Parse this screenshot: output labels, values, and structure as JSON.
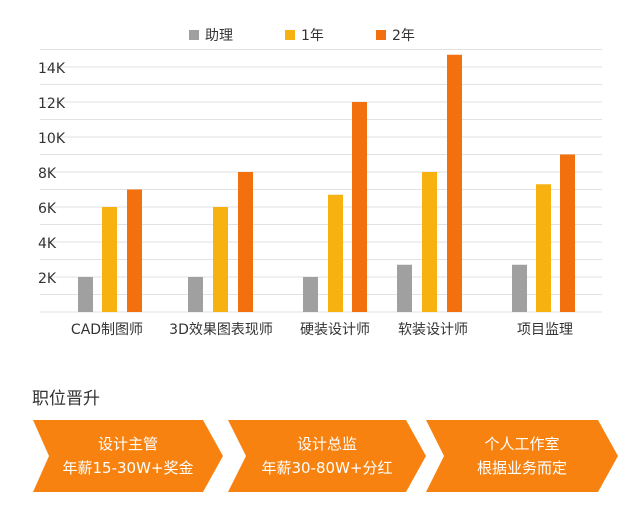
{
  "chart_data": {
    "type": "bar",
    "categories": [
      "CAD制图师",
      "3D效果图表现师",
      "硬装设计师",
      "软装设计师",
      "项目监理"
    ],
    "series": [
      {
        "name": "助理",
        "color": "#a0a0a0",
        "values": [
          2,
          2,
          2,
          2.7,
          2.7
        ]
      },
      {
        "name": "1年",
        "color": "#f7b211",
        "values": [
          6,
          6,
          6.7,
          8,
          7.3
        ]
      },
      {
        "name": "2年",
        "color": "#f2700e",
        "values": [
          7,
          8,
          12,
          14.7,
          9
        ]
      }
    ],
    "yticks": [
      "2K",
      "4K",
      "6K",
      "8K",
      "10K",
      "12K",
      "14K"
    ],
    "ylim": [
      0,
      15
    ],
    "grid": true,
    "legend": "top-center"
  },
  "career": {
    "title": "职位晋升",
    "steps": [
      {
        "line1": "设计主管",
        "line2": "年薪15-30W+奖金"
      },
      {
        "line1": "设计总监",
        "line2": "年薪30-80W+分红"
      },
      {
        "line1": "个人工作室",
        "line2": "根据业务而定"
      }
    ],
    "color": "#f7820f"
  }
}
